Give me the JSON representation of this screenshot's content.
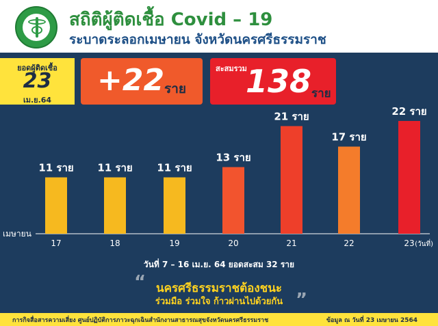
{
  "header": {
    "title": "สถิติผู้ติดเชื้อ Covid – 19",
    "subtitle": "ระบาดระลอกเมษายน จังหวัดนครศรีธรรมราช"
  },
  "summary": {
    "today_label": "ยอดผู้ติดเชื้อ",
    "today_day": "23",
    "today_month": "เม.ย.64",
    "new_cases": "+22",
    "new_unit": "ราย",
    "total_label": "สะสมรวม",
    "total_cases": "138",
    "total_unit": "ราย"
  },
  "chart_data": {
    "type": "bar",
    "categories": [
      "17",
      "18",
      "19",
      "20",
      "21",
      "22",
      "23"
    ],
    "values": [
      11,
      11,
      11,
      13,
      21,
      17,
      22
    ],
    "data_labels": [
      "11 ราย",
      "11 ราย",
      "11 ราย",
      "13 ราย",
      "21 ราย",
      "17 ราย",
      "22 ราย"
    ],
    "colors": [
      "#f6b91f",
      "#f6b91f",
      "#f6b91f",
      "#f2542e",
      "#ee3f2a",
      "#f47c2b",
      "#e8202a"
    ],
    "xlabel": "(วันที่)",
    "ylabel": "เมษายน",
    "ylim": [
      0,
      22
    ],
    "grid": false,
    "legend": "none"
  },
  "footnote": "วันที่ 7 – 16 เม.ย. 64 ยอดสะสม 32 ราย",
  "slogan": {
    "line1": "นครศรีธรรมราชต้องชนะ",
    "line2": "ร่วมมือ ร่วมใจ ก้าวผ่านไปด้วยกัน",
    "quote_open": "“",
    "quote_close": "”"
  },
  "footer": {
    "left": "การกิจสื่อสารความเสี่ยง ศูนย์ปฏิบัติการภาวะฉุกเฉินสำนักงานสาธารณสุขจังหวัดนครศรีธรรมราช",
    "right": "ข้อมูล ณ วันที่ 23 เมษายน 2564"
  },
  "colors": {
    "background": "#1d3c5e",
    "accent_yellow": "#ffe33c",
    "title_green": "#2e8f3e",
    "subtitle_blue": "#1d4f86"
  }
}
